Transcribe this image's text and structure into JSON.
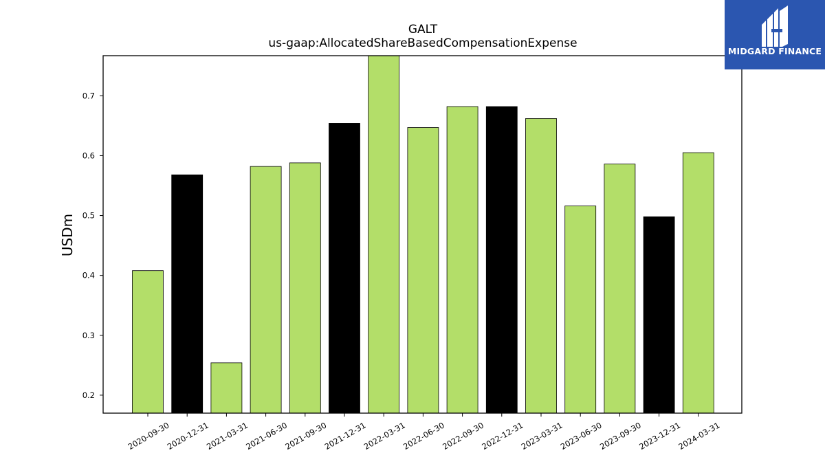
{
  "chart_data": {
    "type": "bar",
    "title": "GALT",
    "subtitle": "us-gaap:AllocatedShareBasedCompensationExpense",
    "xlabel": "",
    "ylabel": "USDm",
    "ylim": [
      0.17,
      0.767
    ],
    "yticks": [
      0.2,
      0.3,
      0.4,
      0.5,
      0.6,
      0.7
    ],
    "categories": [
      "2020-09-30",
      "2020-12-31",
      "2021-03-31",
      "2021-06-30",
      "2021-09-30",
      "2021-12-31",
      "2022-03-31",
      "2022-06-30",
      "2022-09-30",
      "2022-12-31",
      "2023-03-31",
      "2023-06-30",
      "2023-09-30",
      "2023-12-31",
      "2024-03-31"
    ],
    "values": [
      0.408,
      0.568,
      0.254,
      0.582,
      0.588,
      0.654,
      0.77,
      0.647,
      0.682,
      0.682,
      0.662,
      0.516,
      0.586,
      0.498,
      0.605
    ],
    "bar_colors": [
      "#b3de69",
      "#000000",
      "#b3de69",
      "#b3de69",
      "#b3de69",
      "#000000",
      "#b3de69",
      "#b3de69",
      "#b3de69",
      "#000000",
      "#b3de69",
      "#b3de69",
      "#b3de69",
      "#000000",
      "#b3de69"
    ],
    "grid": false,
    "legend": "none"
  },
  "logo": {
    "text": "MIDGARD FINANCE",
    "background": "#2b56b0"
  }
}
